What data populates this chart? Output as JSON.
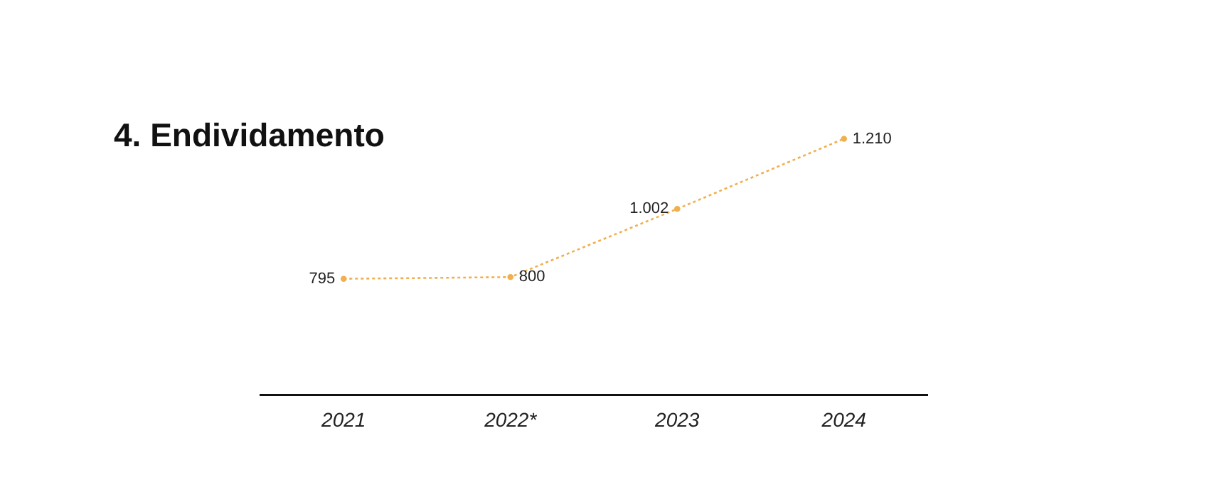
{
  "chart_data": {
    "type": "line",
    "title": "4. Endividamento",
    "categories": [
      "2021",
      "2022*",
      "2023",
      "2024"
    ],
    "values": [
      795,
      800,
      1002,
      1210
    ],
    "value_labels": [
      "795",
      "800",
      "1.002",
      "1.210"
    ],
    "color": "#f0b050",
    "line_style": "dashed",
    "marker": "circle",
    "tick_labels": "x"
  }
}
